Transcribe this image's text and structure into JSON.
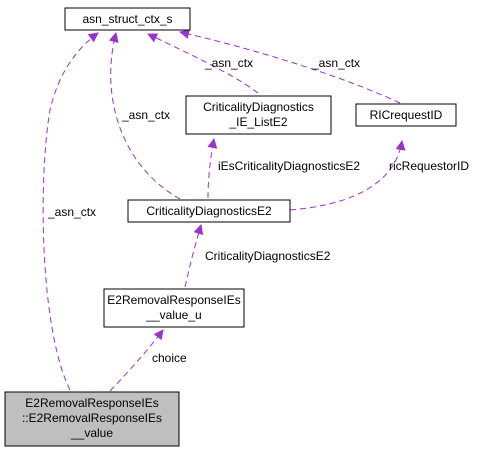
{
  "colors": {
    "edge": "#9a32cd",
    "box_border": "#000000",
    "focus_fill": "#bfbfbf",
    "box_fill": "#ffffff"
  },
  "nodes": {
    "asn_struct_ctx_s": {
      "lines": [
        "asn_struct_ctx_s"
      ]
    },
    "crit_ie_list": {
      "lines": [
        "CriticalityDiagnostics",
        "_IE_ListE2"
      ]
    },
    "ricrequestid": {
      "lines": [
        "RICrequestID"
      ]
    },
    "crit_diag": {
      "lines": [
        "CriticalityDiagnosticsE2"
      ]
    },
    "value_u": {
      "lines": [
        "E2RemovalResponseIEs",
        "__value_u"
      ]
    },
    "value": {
      "lines": [
        "E2RemovalResponseIEs",
        "::E2RemovalResponseIEs",
        "__value"
      ]
    }
  },
  "edge_labels": {
    "asn_ctx_ie_list": "_asn_ctx",
    "asn_ctx_ric": "_asn_ctx",
    "asn_ctx_crit": "_asn_ctx",
    "asn_ctx_value": "_asn_ctx",
    "ies_crit": "iEsCriticalityDiagnosticsE2",
    "ric_requestor": "ricRequestorID",
    "crit_to_valueu": "CriticalityDiagnosticsE2",
    "choice": "choice"
  }
}
